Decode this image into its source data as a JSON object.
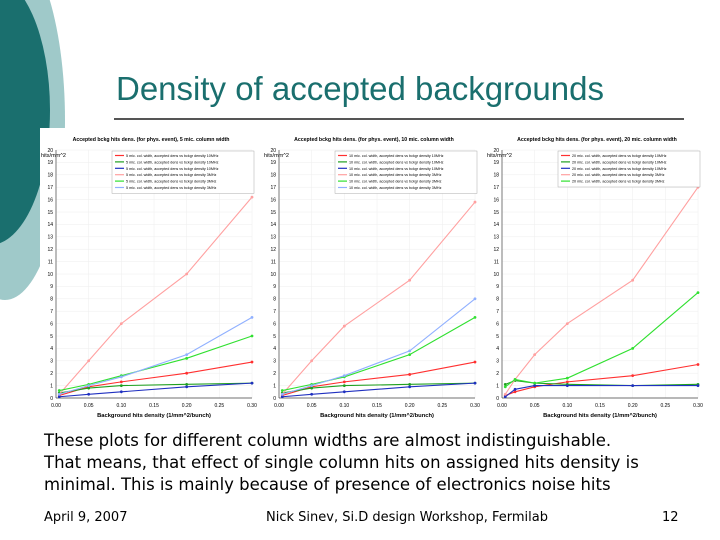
{
  "slide": {
    "title": "Density of accepted backgrounds",
    "caption_lines": [
      "These plots for different column widths are almost indistinguishable.",
      "That means, that effect of single column hits on assigned hits density is",
      "minimal. This is mainly because of presence of electronics noise hits"
    ],
    "footer_date": "April 9, 2007",
    "footer_center": "Nick Sinev, Si.D design Workshop, Fermilab",
    "footer_page": "12",
    "accent_color": "#1a6f6e"
  },
  "chart_data": [
    {
      "type": "line",
      "title": "Accepted bckg hits dens. (for phys. event), 5 mic. column width",
      "ylabel": "hits/mm^2",
      "xlabel": "Background hits density (1/mm^2/bunch)",
      "xlim": [
        0,
        0.3
      ],
      "ylim": [
        0,
        20
      ],
      "x_ticks": [
        "0.00",
        "0.05",
        "0.10",
        "0.15",
        "0.20",
        "0.25",
        "0.30"
      ],
      "y_ticks": [
        "0",
        "1",
        "2",
        "3",
        "4",
        "5",
        "6",
        "7",
        "8",
        "9",
        "10",
        "11",
        "12",
        "13",
        "14",
        "15",
        "16",
        "17",
        "18",
        "19",
        "20"
      ],
      "legend_position": "top",
      "x": [
        0.005,
        0.05,
        0.1,
        0.2,
        0.3
      ],
      "series": [
        {
          "name": "5 mic. col. width, accepted dens vs bckgr density 10MHz",
          "color": "#ff3030",
          "values": [
            0.2,
            0.9,
            1.3,
            2.0,
            2.9
          ]
        },
        {
          "name": "5 mic. col. width, accepted dens vs bckgr density 10MHz",
          "color": "#20a020",
          "values": [
            0.4,
            0.8,
            1.0,
            1.1,
            1.2
          ]
        },
        {
          "name": "5 mic. col. width, accepted dens vs bckgr density 10MHz",
          "color": "#2030c0",
          "values": [
            0.1,
            0.3,
            0.5,
            0.9,
            1.2
          ]
        },
        {
          "name": "5 mic. col. width, accepted dens vs bckgr density 3MHz",
          "color": "#ffa0a0",
          "values": [
            0.3,
            3.0,
            6.0,
            10.0,
            16.2
          ]
        },
        {
          "name": "5 mic. col. width, accepted dens vs bckgr density 3MHz",
          "color": "#30e030",
          "values": [
            0.6,
            1.1,
            1.8,
            3.2,
            5.0
          ]
        },
        {
          "name": "5 mic. col. width, accepted dens vs bckgr density 3MHz",
          "color": "#90b0ff",
          "values": [
            0.3,
            1.0,
            1.7,
            3.5,
            6.5
          ]
        }
      ]
    },
    {
      "type": "line",
      "title": "Accepted bckg hits dens. (for phys. event), 10 mic. column width",
      "ylabel": "hits/mm^2",
      "xlabel": "Background hits density (1/mm^2/bunch)",
      "xlim": [
        0,
        0.3
      ],
      "ylim": [
        0,
        20
      ],
      "x_ticks": [
        "0.00",
        "0.05",
        "0.10",
        "0.15",
        "0.20",
        "0.25",
        "0.30"
      ],
      "y_ticks": [
        "0",
        "1",
        "2",
        "3",
        "4",
        "5",
        "6",
        "7",
        "8",
        "9",
        "10",
        "11",
        "12",
        "13",
        "14",
        "15",
        "16",
        "17",
        "18",
        "19",
        "20"
      ],
      "legend_position": "top",
      "x": [
        0.005,
        0.05,
        0.1,
        0.2,
        0.3
      ],
      "series": [
        {
          "name": "10 mic. col. width, accepted dens vs bckgr density 10MHz",
          "color": "#ff3030",
          "values": [
            0.2,
            0.9,
            1.3,
            1.9,
            2.9
          ]
        },
        {
          "name": "10 mic. col. width, accepted dens vs bckgr density 10MHz",
          "color": "#20a020",
          "values": [
            0.4,
            0.8,
            1.0,
            1.1,
            1.2
          ]
        },
        {
          "name": "10 mic. col. width, accepted dens vs bckgr density 10MHz",
          "color": "#2030c0",
          "values": [
            0.1,
            0.3,
            0.5,
            0.9,
            1.2
          ]
        },
        {
          "name": "10 mic. col. width, accepted dens vs bckgr density 3MHz",
          "color": "#ffa0a0",
          "values": [
            0.3,
            3.0,
            5.8,
            9.5,
            15.8
          ]
        },
        {
          "name": "10 mic. col. width, accepted dens vs bckgr density 3MHz",
          "color": "#30e030",
          "values": [
            0.6,
            1.1,
            1.7,
            3.5,
            6.5
          ]
        },
        {
          "name": "10 mic. col. width, accepted dens vs bckgr density 3MHz",
          "color": "#90b0ff",
          "values": [
            0.3,
            1.0,
            1.8,
            3.8,
            8.0
          ]
        }
      ]
    },
    {
      "type": "line",
      "title": "Accepted bckg hits dens. (for phys. event), 20 mic. column width",
      "ylabel": "hits/mm^2",
      "xlabel": "Background hits density (1/mm^2/bunch)",
      "xlim": [
        0,
        0.3
      ],
      "ylim": [
        0,
        20
      ],
      "x_ticks": [
        "0.00",
        "0.05",
        "0.10",
        "0.15",
        "0.20",
        "0.25",
        "0.30"
      ],
      "y_ticks": [
        "0",
        "1",
        "2",
        "3",
        "4",
        "5",
        "6",
        "7",
        "8",
        "9",
        "10",
        "11",
        "12",
        "13",
        "14",
        "15",
        "16",
        "17",
        "18",
        "19",
        "20"
      ],
      "legend_position": "top",
      "x": [
        0.005,
        0.02,
        0.05,
        0.1,
        0.2,
        0.3
      ],
      "series": [
        {
          "name": "20 mic. col. width, accepted dens vs bckgr density 10MHz",
          "color": "#ff3030",
          "values": [
            0.2,
            0.5,
            0.9,
            1.3,
            1.8,
            2.7
          ]
        },
        {
          "name": "20 mic. col. width, accepted dens vs bckgr density 10MHz",
          "color": "#20a020",
          "values": [
            1.1,
            1.4,
            1.2,
            1.1,
            1.0,
            1.1
          ]
        },
        {
          "name": "20 mic. col. width, accepted dens vs bckgr density 10MHz",
          "color": "#2030c0",
          "values": [
            0.1,
            0.7,
            1.0,
            1.0,
            1.0,
            1.0
          ]
        },
        {
          "name": "20 mic. col. width, accepted dens vs bckgr density 3MHz",
          "color": "#ffa0a0",
          "values": [
            0.3,
            1.5,
            3.5,
            6.0,
            9.5,
            17.0
          ]
        },
        {
          "name": "20 mic. col. width, accepted dens vs bckgr density 3MHz",
          "color": "#30e030",
          "values": [
            0.9,
            1.5,
            1.2,
            1.6,
            4.0,
            8.5
          ]
        }
      ]
    }
  ]
}
